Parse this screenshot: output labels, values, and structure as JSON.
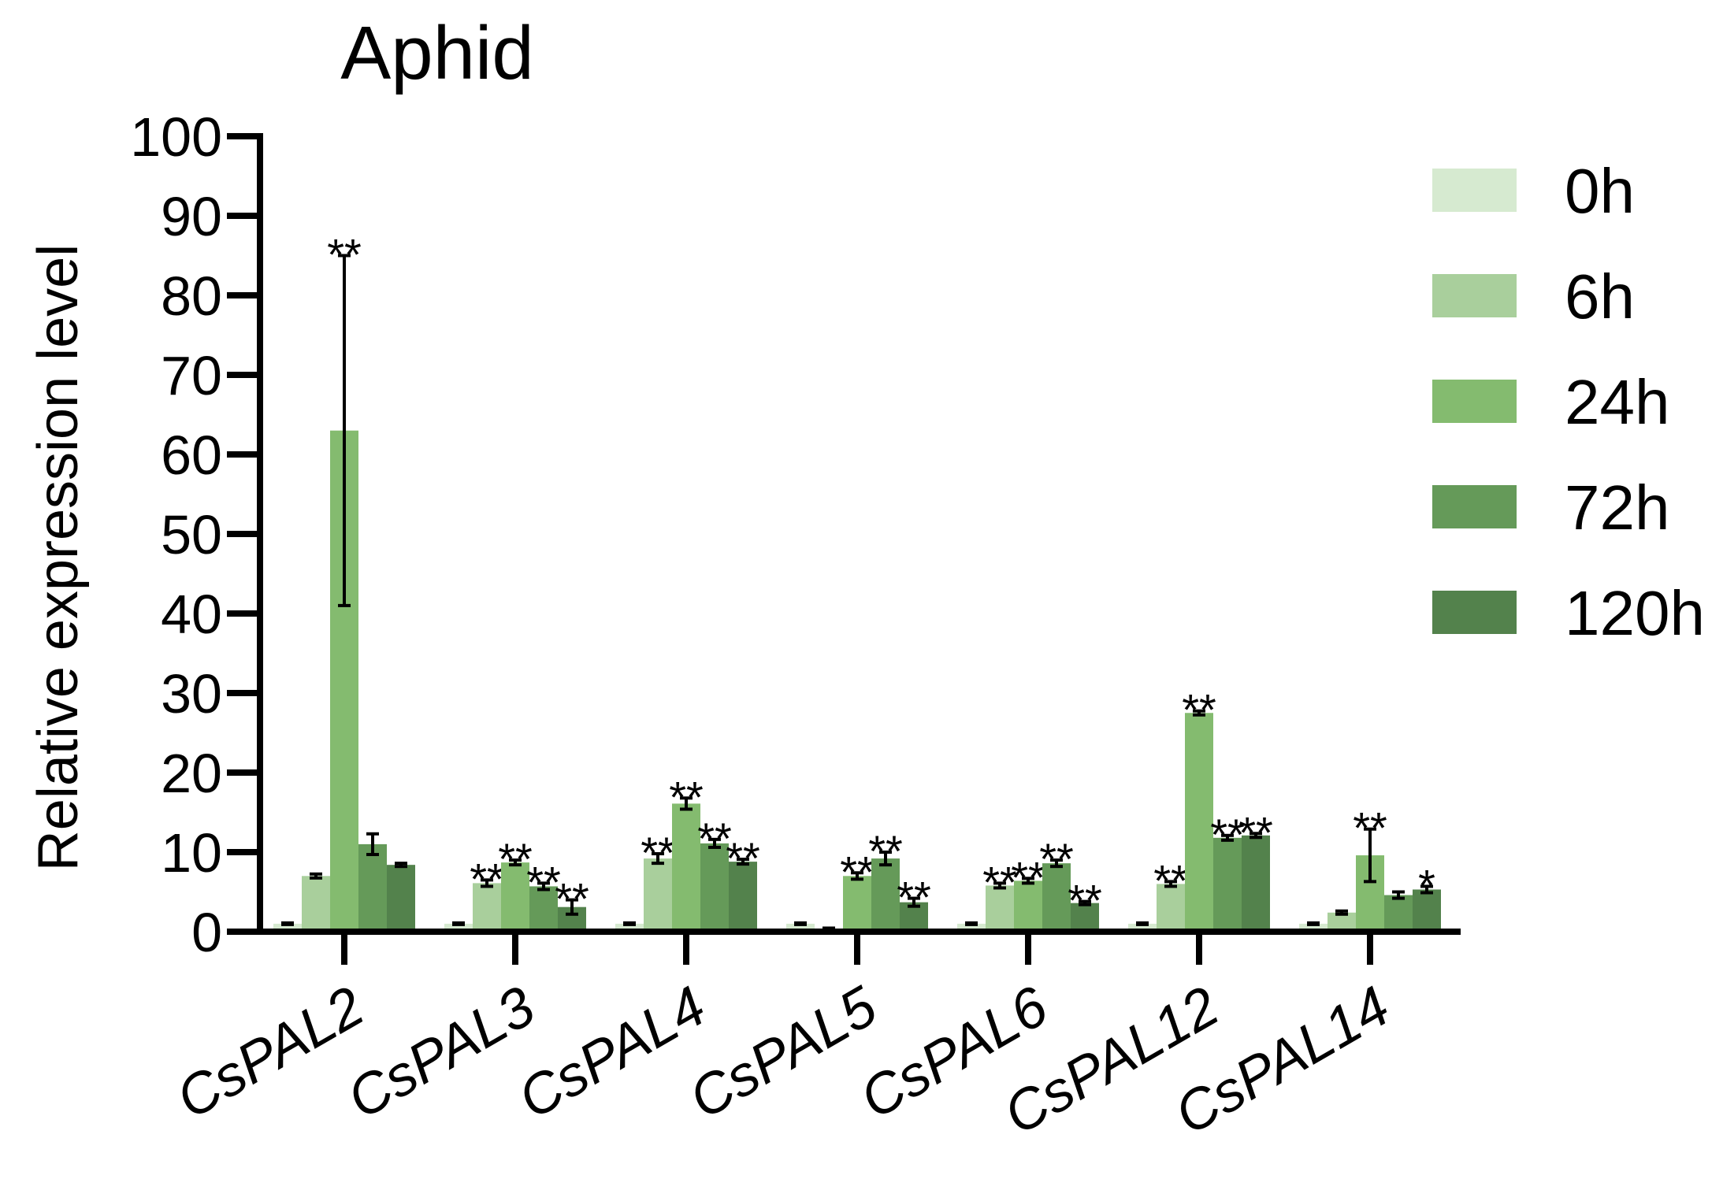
{
  "chart_data": {
    "type": "bar",
    "title": "Aphid",
    "ylabel": "Relative expression level",
    "xlabel": "",
    "ylim": [
      0,
      100
    ],
    "yticks": [
      "0",
      "10",
      "20",
      "30",
      "40",
      "50",
      "60",
      "70",
      "80",
      "90",
      "100"
    ],
    "categories": [
      "CsPAL2",
      "CsPAL3",
      "CsPAL4",
      "CsPAL5",
      "CsPAL6",
      "CsPAL12",
      "CsPAL14"
    ],
    "series": [
      {
        "name": "0h",
        "color": "#d6ead0",
        "values": [
          1.0,
          1.0,
          1.0,
          1.0,
          1.0,
          1.0,
          1.0
        ],
        "errors": [
          0.1,
          0.1,
          0.1,
          0.1,
          0.1,
          0.1,
          0.1
        ],
        "sig": [
          "",
          "",
          "",
          "",
          "",
          "",
          ""
        ]
      },
      {
        "name": "6h",
        "color": "#a9cf9c",
        "values": [
          7.0,
          6.1,
          9.2,
          0.4,
          5.8,
          6.0,
          2.4
        ],
        "errors": [
          0.25,
          0.4,
          0.6,
          0.05,
          0.3,
          0.3,
          0.2
        ],
        "sig": [
          "",
          "**",
          "**",
          "",
          "**",
          "**",
          ""
        ]
      },
      {
        "name": "24h",
        "color": "#84bb6f",
        "values": [
          63.0,
          8.7,
          16.1,
          7.0,
          6.4,
          27.5,
          9.6
        ],
        "errors": [
          22.0,
          0.3,
          0.7,
          0.4,
          0.3,
          0.25,
          3.3
        ],
        "sig": [
          "**",
          "**",
          "**",
          "**",
          "**",
          "**",
          "**"
        ]
      },
      {
        "name": "72h",
        "color": "#659a59",
        "values": [
          11.0,
          5.7,
          11.1,
          9.2,
          8.6,
          11.8,
          4.6
        ],
        "errors": [
          1.3,
          0.4,
          0.5,
          0.8,
          0.4,
          0.3,
          0.4
        ],
        "sig": [
          "",
          "**",
          "**",
          "**",
          "**",
          "**",
          ""
        ]
      },
      {
        "name": "120h",
        "color": "#53824c",
        "values": [
          8.4,
          3.1,
          8.8,
          3.7,
          3.6,
          12.1,
          5.3
        ],
        "errors": [
          0.2,
          0.9,
          0.3,
          0.5,
          0.2,
          0.25,
          0.4
        ],
        "sig": [
          "",
          "**",
          "**",
          "**",
          "**",
          "**",
          "*"
        ]
      }
    ],
    "legend_position": "top-right",
    "grid": false
  }
}
